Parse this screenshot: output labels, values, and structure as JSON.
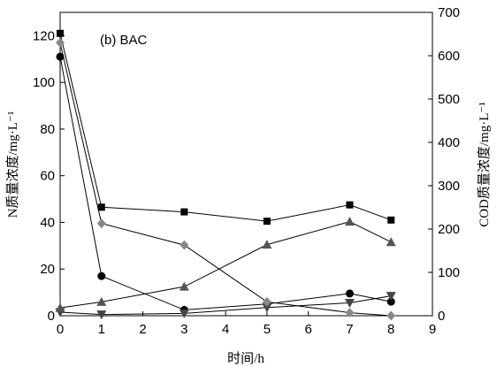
{
  "chart_data": {
    "type": "line",
    "title": "(b)  BAC",
    "xlabel": "时间/h",
    "ylabel_left": "N质量浓度/mg·L⁻¹",
    "ylabel_right": "COD质量浓度/mg·L⁻¹",
    "xlim": [
      0,
      9
    ],
    "ylim_left": [
      0,
      130
    ],
    "ylim_right": [
      0,
      700
    ],
    "xticks": [
      0,
      1,
      2,
      3,
      4,
      5,
      6,
      7,
      8,
      9
    ],
    "yticks_left": [
      0,
      20,
      40,
      60,
      80,
      100,
      120
    ],
    "yticks_right": [
      0,
      100,
      200,
      300,
      400,
      500,
      600,
      700
    ],
    "grid": false,
    "legend": "none",
    "series": [
      {
        "marker": "square",
        "axis": "left",
        "color": "#000000",
        "x": [
          0,
          1,
          3,
          5,
          7,
          8
        ],
        "y": [
          121,
          46.5,
          44.5,
          40.5,
          47.5,
          41
        ]
      },
      {
        "marker": "circle",
        "axis": "left",
        "color": "#000000",
        "x": [
          0,
          1,
          3,
          5,
          7,
          8
        ],
        "y": [
          111,
          17,
          2.5,
          5,
          9.5,
          6
        ]
      },
      {
        "marker": "triangle-down",
        "axis": "left",
        "color": "#444444",
        "x": [
          0,
          1,
          3,
          5,
          7,
          8
        ],
        "y": [
          1.5,
          0.5,
          1,
          3.5,
          5.5,
          8.5
        ]
      },
      {
        "marker": "triangle-up",
        "axis": "right",
        "color": "#555555",
        "x": [
          0,
          1,
          3,
          5,
          7,
          8
        ],
        "y": [
          18,
          32,
          67,
          164,
          217,
          170
        ]
      },
      {
        "marker": "diamond",
        "axis": "right",
        "color": "#888888",
        "x": [
          0,
          1,
          3,
          5,
          7,
          8
        ],
        "y": [
          630,
          213,
          163,
          32,
          7,
          0
        ]
      }
    ]
  }
}
